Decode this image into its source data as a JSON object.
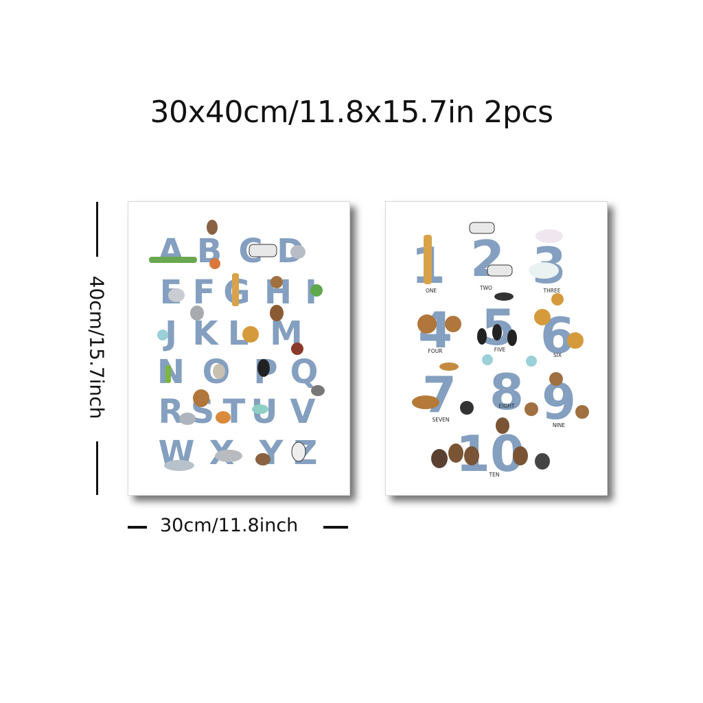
{
  "heading": "30x40cm/11.8x15.7in 2pcs",
  "dimensions": {
    "height_label": "40cm/15.7inch",
    "width_label": "30cm/11.8inch"
  },
  "alphabet_poster": {
    "letters": [
      "A",
      "B",
      "C",
      "D",
      "E",
      "F",
      "G",
      "H",
      "I",
      "J",
      "K",
      "L",
      "M",
      "N",
      "O",
      "P",
      "Q",
      "R",
      "S",
      "T",
      "U",
      "V",
      "W",
      "X",
      "Y",
      "Z"
    ]
  },
  "numbers_poster": {
    "numerals": [
      "1",
      "2",
      "3",
      "4",
      "5",
      "6",
      "7",
      "8",
      "9",
      "10"
    ],
    "words": [
      "ONE",
      "TWO",
      "THREE",
      "FOUR",
      "FIVE",
      "SIX",
      "SEVEN",
      "EIGHT",
      "NINE",
      "TEN"
    ]
  },
  "colors": {
    "letter_blue": "#6f8fb5",
    "text": "#111111"
  }
}
